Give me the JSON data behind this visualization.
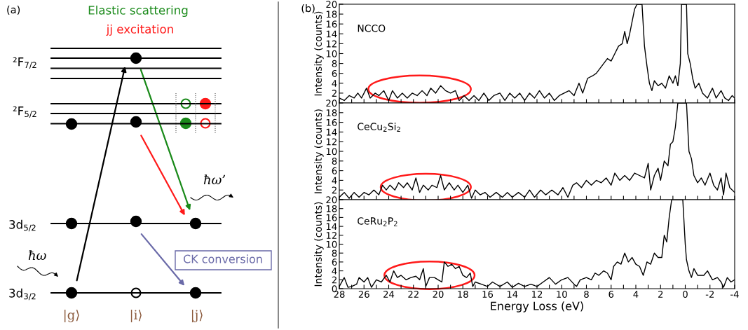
{
  "chart_data": [
    {
      "type": "other",
      "title": "(a)",
      "annotations": [
        "Elastic scattering",
        "jj excitation",
        "²F$_{7/2}$",
        "²F$_{5/2}$",
        "3d$_{5/2}$",
        "3d$_{3/2}$",
        "ħω",
        "ħω’",
        "CK conversion",
        "|g⟩",
        "|i⟩",
        "|j⟩"
      ]
    },
    {
      "type": "line",
      "title": "(b)",
      "ylabel": "Intensity (counts)",
      "xlim": [
        28,
        -4
      ],
      "ylim": [
        0,
        20
      ],
      "tick_labels": "y",
      "yticks": [
        {
          "value": 0,
          "label": null
        },
        2,
        4,
        6,
        8,
        10,
        12,
        14,
        16,
        18,
        20
      ],
      "series": [
        {
          "name": "NCCO",
          "color": "#000000",
          "x": [
            28,
            27.6,
            27.2,
            26.8,
            26.5,
            26.2,
            25.8,
            25.5,
            25.1,
            24.8,
            24.4,
            24.0,
            23.7,
            23.3,
            22.9,
            22.5,
            22.1,
            21.7,
            21.3,
            20.9,
            20.6,
            20.2,
            19.8,
            19.4,
            19.0,
            18.6,
            18.3,
            17.9,
            17.5,
            17.1,
            16.7,
            16.3,
            15.9,
            15.5,
            15.0,
            14.6,
            14.2,
            13.8,
            13.4,
            13.0,
            12.6,
            12.2,
            11.8,
            11.4,
            11.0,
            10.6,
            10.2,
            9.8,
            9.4,
            9.0,
            8.6,
            8.3,
            7.9,
            7.5,
            7.2,
            6.9,
            6.6,
            6.3,
            6.0,
            5.7,
            5.4,
            5.1,
            4.9,
            4.7,
            4.5,
            4.3,
            4.1,
            3.9,
            3.5,
            3.3,
            3.1,
            2.9,
            2.7,
            2.5,
            2.2,
            1.9,
            1.6,
            1.3,
            1.0,
            0.8,
            0.6,
            0.4,
            0.3,
            -0.1,
            -0.2,
            -0.4,
            -0.6,
            -0.8,
            -1.1,
            -1.4,
            -1.8,
            -2.2,
            -2.5,
            -2.9,
            -3.2,
            -3.5,
            -3.8,
            -4.0
          ],
          "values": [
            1.0,
            0.5,
            1.5,
            1.0,
            2.0,
            1.0,
            3.0,
            1.0,
            2.0,
            1.5,
            2.5,
            0.5,
            2.5,
            1.0,
            2.0,
            1.0,
            2.0,
            1.5,
            2.5,
            1.5,
            3.0,
            2.0,
            3.5,
            2.5,
            2.0,
            2.5,
            0.5,
            1.5,
            0.5,
            1.5,
            0.5,
            2.0,
            0.5,
            1.5,
            2.0,
            0.5,
            2.0,
            1.0,
            2.0,
            0.5,
            2.0,
            1.0,
            2.5,
            1.0,
            2.0,
            0.5,
            1.5,
            2.0,
            2.5,
            1.5,
            4.0,
            2.0,
            5.0,
            5.5,
            6.0,
            7.0,
            8.0,
            9.0,
            8.5,
            10.0,
            11.5,
            12.0,
            14.5,
            12.0,
            14.0,
            16.5,
            19.0,
            20,
            20,
            11.5,
            7.5,
            4.0,
            2.5,
            4.5,
            3.5,
            4.0,
            3.0,
            5.5,
            4.0,
            5.5,
            3.5,
            8.0,
            20,
            20,
            10.0,
            8.0,
            5.0,
            3.0,
            4.0,
            2.0,
            1.0,
            3.0,
            1.0,
            2.5,
            1.0,
            0.5,
            1.5,
            1.0
          ]
        }
      ]
    },
    {
      "type": "line",
      "ylabel": "Intensity (counts)",
      "xlim": [
        28,
        -4
      ],
      "ylim": [
        0,
        20
      ],
      "tick_labels": "y",
      "yticks": [
        {
          "value": 0,
          "label": null
        },
        2,
        4,
        6,
        8,
        10,
        12,
        14,
        16,
        18,
        20
      ],
      "series": [
        {
          "name": "CeCu$_{2}$Si$_{2}$",
          "color": "#000000",
          "x": [
            28,
            27.6,
            27.2,
            26.8,
            26.4,
            26.0,
            25.6,
            25.2,
            24.8,
            24.5,
            24.2,
            23.9,
            23.5,
            23.2,
            22.8,
            22.5,
            22.1,
            21.8,
            21.5,
            21.2,
            20.8,
            20.5,
            20.1,
            19.8,
            19.5,
            19.1,
            18.7,
            18.4,
            18.0,
            17.6,
            17.3,
            17.0,
            16.6,
            16.2,
            15.8,
            15.3,
            14.8,
            14.4,
            14.0,
            13.5,
            13.0,
            12.6,
            12.2,
            11.7,
            11.3,
            10.8,
            10.3,
            9.9,
            9.5,
            9.1,
            8.8,
            8.4,
            8.0,
            7.6,
            7.2,
            6.8,
            6.4,
            6.0,
            5.7,
            5.3,
            4.9,
            4.5,
            4.1,
            3.7,
            3.3,
            3.0,
            2.8,
            2.5,
            2.2,
            2.0,
            1.7,
            1.4,
            1.2,
            1.0,
            0.8,
            0.6,
            -0.1,
            -0.3,
            -0.5,
            -0.7,
            -1.0,
            -1.3,
            -1.6,
            -2.0,
            -2.3,
            -2.6,
            -2.9,
            -3.1,
            -3.3,
            -3.6,
            -4.0
          ],
          "values": [
            0.5,
            1.5,
            0.3,
            1.5,
            0.5,
            1.5,
            1.0,
            2.0,
            1.0,
            3.0,
            2.0,
            3.0,
            2.0,
            3.5,
            2.5,
            3.5,
            2.0,
            4.5,
            1.5,
            3.0,
            2.0,
            3.0,
            2.5,
            5.0,
            2.0,
            3.5,
            2.0,
            3.0,
            1.5,
            3.0,
            0.3,
            2.0,
            1.0,
            1.5,
            0.5,
            1.5,
            0.5,
            1.5,
            0.5,
            1.5,
            0.5,
            2.0,
            0.5,
            2.0,
            1.0,
            2.0,
            1.0,
            2.5,
            0.5,
            3.0,
            3.5,
            2.5,
            4.0,
            3.0,
            4.0,
            3.5,
            4.5,
            3.0,
            5.5,
            4.0,
            5.0,
            4.0,
            5.5,
            5.0,
            4.5,
            7.5,
            2.0,
            5.0,
            6.5,
            4.0,
            8.0,
            7.0,
            11.5,
            12.0,
            15.0,
            20,
            20,
            10.0,
            8.5,
            5.0,
            3.5,
            4.5,
            3.0,
            5.5,
            3.0,
            2.0,
            4.5,
            1.0,
            5.5,
            2.5,
            1.5
          ]
        }
      ]
    },
    {
      "type": "line",
      "ylabel": "Intensity (counts)",
      "xlabel": "Energy Loss (eV)",
      "xlim": [
        28,
        -4
      ],
      "ylim": [
        0,
        20
      ],
      "xticks": [
        28,
        {
          "value": 27,
          "label": null
        },
        26,
        {
          "value": 25,
          "label": null
        },
        24,
        {
          "value": 23,
          "label": null
        },
        22,
        {
          "value": 21,
          "label": null
        },
        20,
        {
          "value": 19,
          "label": null
        },
        18,
        {
          "value": 17,
          "label": null
        },
        16,
        {
          "value": 15,
          "label": null
        },
        14,
        {
          "value": 13,
          "label": null
        },
        12,
        {
          "value": 11,
          "label": null
        },
        10,
        {
          "value": 9,
          "label": null
        },
        8,
        {
          "value": 7,
          "label": null
        },
        6,
        {
          "value": 5,
          "label": null
        },
        4,
        {
          "value": 3,
          "label": null
        },
        2,
        {
          "value": 1,
          "label": null
        },
        0,
        {
          "value": -1,
          "label": null
        },
        {
          "value": -2,
          "label": "-2"
        },
        {
          "value": -3,
          "label": null
        },
        {
          "value": -4,
          "label": "-4"
        }
      ],
      "yticks": [
        0,
        2,
        4,
        6,
        8,
        10,
        12,
        14,
        16,
        18,
        20
      ],
      "series": [
        {
          "name": "CeRu$_{2}$P$_{2}$",
          "color": "#000000",
          "x": [
            28,
            27.6,
            27.3,
            27.0,
            26.6,
            26.4,
            26.0,
            25.7,
            25.4,
            25.0,
            24.6,
            24.2,
            23.9,
            23.6,
            23.3,
            23.0,
            22.6,
            22.2,
            21.8,
            21.5,
            21.2,
            21.0,
            20.7,
            20.3,
            20.0,
            19.7,
            19.5,
            19.2,
            18.9,
            18.6,
            18.3,
            18.0,
            17.7,
            17.4,
            17.2,
            17.0,
            16.5,
            16.0,
            15.6,
            15.0,
            14.4,
            14.0,
            13.5,
            13.0,
            12.5,
            12.0,
            11.5,
            11.0,
            10.5,
            10.0,
            9.5,
            9.0,
            8.8,
            8.5,
            8.0,
            7.6,
            7.3,
            7.0,
            6.6,
            6.3,
            6.0,
            5.8,
            5.5,
            5.2,
            4.9,
            4.6,
            4.3,
            4.0,
            3.7,
            3.4,
            3.1,
            2.8,
            2.5,
            2.2,
            1.9,
            1.7,
            1.5,
            1.3,
            1.1,
            0.2,
            0.0,
            -0.1,
            -0.3,
            -0.5,
            -0.7,
            -1.0,
            -1.5,
            -1.8,
            -2.2,
            -2.6,
            -2.9,
            -3.1,
            -3.4,
            -3.7,
            -4.0
          ],
          "values": [
            0.5,
            2.5,
            0.3,
            0.5,
            1.0,
            2.5,
            1.5,
            2.5,
            0.3,
            2.0,
            1.5,
            3.0,
            1.5,
            4.0,
            2.5,
            3.0,
            2.0,
            2.5,
            2.8,
            2.0,
            4.5,
            0.5,
            2.5,
            2.5,
            2.0,
            1.5,
            6.0,
            5.0,
            5.5,
            4.5,
            5.0,
            3.0,
            2.5,
            3.5,
            0.5,
            1.5,
            1.0,
            0.5,
            1.5,
            0.5,
            1.5,
            0.3,
            1.2,
            0.5,
            1.0,
            0.5,
            1.5,
            2.5,
            1.0,
            2.0,
            2.5,
            1.0,
            0.5,
            2.0,
            2.5,
            2.0,
            3.5,
            3.0,
            4.0,
            3.5,
            2.0,
            5.0,
            6.0,
            5.5,
            8.0,
            6.0,
            7.0,
            5.5,
            5.0,
            3.0,
            6.0,
            5.5,
            8.0,
            7.0,
            7.0,
            12.0,
            10.5,
            16.0,
            20,
            20,
            10,
            6.5,
            4.0,
            2.5,
            4.5,
            3.0,
            3.0,
            4.0,
            2.0,
            2.5,
            1.5,
            0.3,
            2.5,
            1.5,
            2.0
          ]
        }
      ]
    }
  ]
}
